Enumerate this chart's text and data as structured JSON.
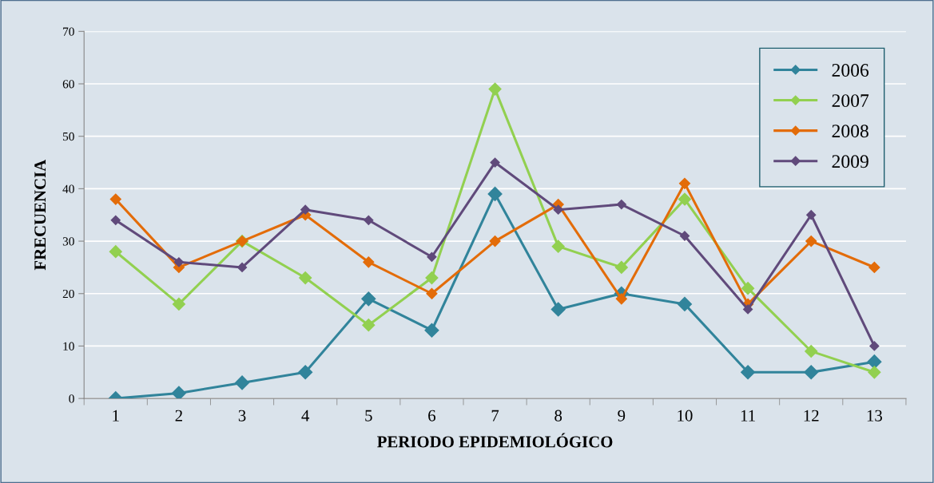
{
  "chart_data": {
    "type": "line",
    "xlabel": "PERIODO EPIDEMIOLÓGICO",
    "ylabel": "FRECUENCIA",
    "categories": [
      "1",
      "2",
      "3",
      "4",
      "5",
      "6",
      "7",
      "8",
      "9",
      "10",
      "11",
      "12",
      "13"
    ],
    "series": [
      {
        "name": "2006",
        "color": "#31849b",
        "values": [
          0,
          1,
          3,
          5,
          19,
          13,
          39,
          17,
          20,
          18,
          5,
          5,
          7
        ]
      },
      {
        "name": "2007",
        "color": "#92d050",
        "values": [
          28,
          18,
          30,
          23,
          14,
          23,
          59,
          29,
          25,
          38,
          21,
          9,
          5
        ]
      },
      {
        "name": "2008",
        "color": "#e36c09",
        "values": [
          38,
          25,
          30,
          35,
          26,
          20,
          30,
          37,
          19,
          41,
          18,
          30,
          25
        ]
      },
      {
        "name": "2009",
        "color": "#604a7b",
        "values": [
          34,
          26,
          25,
          36,
          34,
          27,
          45,
          36,
          37,
          31,
          17,
          35,
          10
        ]
      }
    ],
    "ylim": [
      0,
      70
    ],
    "yticks": [
      0,
      10,
      20,
      30,
      40,
      50,
      60,
      70
    ],
    "grid": "y",
    "legend": "top right",
    "marker": "diamond",
    "line_style": "solid"
  }
}
